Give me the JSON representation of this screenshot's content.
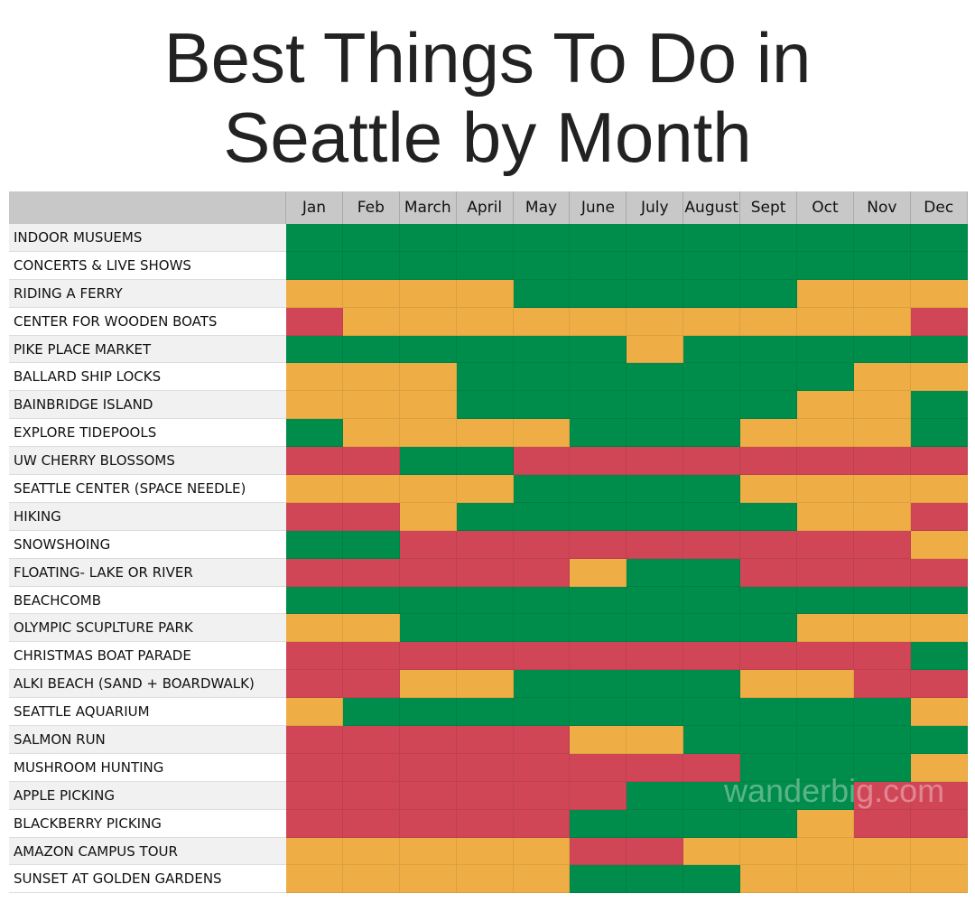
{
  "header": {
    "title_line1": "Best Things To Do in",
    "title_line2": "Seattle by Month"
  },
  "table": {
    "months": [
      "Jan",
      "Feb",
      "March",
      "April",
      "May",
      "June",
      "July",
      "August",
      "Sept",
      "Oct",
      "Nov",
      "Dec"
    ],
    "rows": [
      {
        "label": "INDOOR MUSUEMS",
        "cells": [
          "#008c4a",
          "#008c4a",
          "#008c4a",
          "#008c4a",
          "#008c4a",
          "#008c4a",
          "#008c4a",
          "#008c4a",
          "#008c4a",
          "#008c4a",
          "#008c4a",
          "#008c4a"
        ]
      },
      {
        "label": "CONCERTS & LIVE SHOWS",
        "cells": [
          "#008c4a",
          "#008c4a",
          "#008c4a",
          "#008c4a",
          "#008c4a",
          "#008c4a",
          "#008c4a",
          "#008c4a",
          "#008c4a",
          "#008c4a",
          "#008c4a",
          "#008c4a"
        ]
      },
      {
        "label": "RIDING A FERRY",
        "cells": [
          "#eeae45",
          "#eeae45",
          "#eeae45",
          "#eeae45",
          "#008c4a",
          "#008c4a",
          "#008c4a",
          "#008c4a",
          "#008c4a",
          "#eeae45",
          "#eeae45",
          "#eeae45"
        ]
      },
      {
        "label": "CENTER FOR WOODEN BOATS",
        "cells": [
          "#d04657",
          "#eeae45",
          "#eeae45",
          "#eeae45",
          "#eeae45",
          "#eeae45",
          "#eeae45",
          "#eeae45",
          "#eeae45",
          "#eeae45",
          "#eeae45",
          "#d04657"
        ]
      },
      {
        "label": "PIKE PLACE MARKET",
        "cells": [
          "#008c4a",
          "#008c4a",
          "#008c4a",
          "#008c4a",
          "#008c4a",
          "#008c4a",
          "#eeae45",
          "#008c4a",
          "#008c4a",
          "#008c4a",
          "#008c4a",
          "#008c4a"
        ]
      },
      {
        "label": "BALLARD SHIP LOCKS",
        "cells": [
          "#eeae45",
          "#eeae45",
          "#eeae45",
          "#008c4a",
          "#008c4a",
          "#008c4a",
          "#008c4a",
          "#008c4a",
          "#008c4a",
          "#008c4a",
          "#eeae45",
          "#eeae45"
        ]
      },
      {
        "label": "BAINBRIDGE ISLAND",
        "cells": [
          "#eeae45",
          "#eeae45",
          "#eeae45",
          "#008c4a",
          "#008c4a",
          "#008c4a",
          "#008c4a",
          "#008c4a",
          "#008c4a",
          "#eeae45",
          "#eeae45",
          "#008c4a"
        ]
      },
      {
        "label": "EXPLORE TIDEPOOLS",
        "cells": [
          "#008c4a",
          "#eeae45",
          "#eeae45",
          "#eeae45",
          "#eeae45",
          "#008c4a",
          "#008c4a",
          "#008c4a",
          "#eeae45",
          "#eeae45",
          "#eeae45",
          "#008c4a"
        ]
      },
      {
        "label": "UW CHERRY BLOSSOMS",
        "cells": [
          "#d04657",
          "#d04657",
          "#008c4a",
          "#008c4a",
          "#d04657",
          "#d04657",
          "#d04657",
          "#d04657",
          "#d04657",
          "#d04657",
          "#d04657",
          "#d04657"
        ]
      },
      {
        "label": "SEATTLE CENTER (SPACE NEEDLE)",
        "cells": [
          "#eeae45",
          "#eeae45",
          "#eeae45",
          "#eeae45",
          "#008c4a",
          "#008c4a",
          "#008c4a",
          "#008c4a",
          "#eeae45",
          "#eeae45",
          "#eeae45",
          "#eeae45"
        ]
      },
      {
        "label": "HIKING",
        "cells": [
          "#d04657",
          "#d04657",
          "#eeae45",
          "#008c4a",
          "#008c4a",
          "#008c4a",
          "#008c4a",
          "#008c4a",
          "#008c4a",
          "#eeae45",
          "#eeae45",
          "#d04657"
        ]
      },
      {
        "label": "SNOWSHOING",
        "cells": [
          "#008c4a",
          "#008c4a",
          "#d04657",
          "#d04657",
          "#d04657",
          "#d04657",
          "#d04657",
          "#d04657",
          "#d04657",
          "#d04657",
          "#d04657",
          "#eeae45"
        ]
      },
      {
        "label": "FLOATING- LAKE OR RIVER",
        "cells": [
          "#d04657",
          "#d04657",
          "#d04657",
          "#d04657",
          "#d04657",
          "#eeae45",
          "#008c4a",
          "#008c4a",
          "#d04657",
          "#d04657",
          "#d04657",
          "#d04657"
        ]
      },
      {
        "label": "BEACHCOMB",
        "cells": [
          "#008c4a",
          "#008c4a",
          "#008c4a",
          "#008c4a",
          "#008c4a",
          "#008c4a",
          "#008c4a",
          "#008c4a",
          "#008c4a",
          "#008c4a",
          "#008c4a",
          "#008c4a"
        ]
      },
      {
        "label": "OLYMPIC SCUPLTURE PARK",
        "cells": [
          "#eeae45",
          "#eeae45",
          "#008c4a",
          "#008c4a",
          "#008c4a",
          "#008c4a",
          "#008c4a",
          "#008c4a",
          "#008c4a",
          "#eeae45",
          "#eeae45",
          "#eeae45"
        ]
      },
      {
        "label": "CHRISTMAS BOAT PARADE",
        "cells": [
          "#d04657",
          "#d04657",
          "#d04657",
          "#d04657",
          "#d04657",
          "#d04657",
          "#d04657",
          "#d04657",
          "#d04657",
          "#d04657",
          "#d04657",
          "#008c4a"
        ]
      },
      {
        "label": "ALKI BEACH (SAND + BOARDWALK)",
        "cells": [
          "#d04657",
          "#d04657",
          "#eeae45",
          "#eeae45",
          "#008c4a",
          "#008c4a",
          "#008c4a",
          "#008c4a",
          "#eeae45",
          "#eeae45",
          "#d04657",
          "#d04657"
        ]
      },
      {
        "label": "SEATTLE AQUARIUM",
        "cells": [
          "#eeae45",
          "#008c4a",
          "#008c4a",
          "#008c4a",
          "#008c4a",
          "#008c4a",
          "#008c4a",
          "#008c4a",
          "#008c4a",
          "#008c4a",
          "#008c4a",
          "#eeae45"
        ]
      },
      {
        "label": "SALMON RUN",
        "cells": [
          "#d04657",
          "#d04657",
          "#d04657",
          "#d04657",
          "#d04657",
          "#eeae45",
          "#eeae45",
          "#008c4a",
          "#008c4a",
          "#008c4a",
          "#008c4a",
          "#008c4a"
        ]
      },
      {
        "label": "MUSHROOM HUNTING",
        "cells": [
          "#d04657",
          "#d04657",
          "#d04657",
          "#d04657",
          "#d04657",
          "#d04657",
          "#d04657",
          "#d04657",
          "#008c4a",
          "#008c4a",
          "#008c4a",
          "#eeae45"
        ]
      },
      {
        "label": "APPLE PICKING",
        "cells": [
          "#d04657",
          "#d04657",
          "#d04657",
          "#d04657",
          "#d04657",
          "#d04657",
          "#008c4a",
          "#008c4a",
          "#008c4a",
          "#008c4a",
          "#d04657",
          "#d04657"
        ]
      },
      {
        "label": "BLACKBERRY PICKING",
        "cells": [
          "#d04657",
          "#d04657",
          "#d04657",
          "#d04657",
          "#d04657",
          "#008c4a",
          "#008c4a",
          "#008c4a",
          "#008c4a",
          "#eeae45",
          "#d04657",
          "#d04657"
        ]
      },
      {
        "label": "AMAZON CAMPUS TOUR",
        "cells": [
          "#eeae45",
          "#eeae45",
          "#eeae45",
          "#eeae45",
          "#eeae45",
          "#d04657",
          "#d04657",
          "#eeae45",
          "#eeae45",
          "#eeae45",
          "#eeae45",
          "#eeae45"
        ]
      },
      {
        "label": "SUNSET AT GOLDEN GARDENS",
        "cells": [
          "#eeae45",
          "#eeae45",
          "#eeae45",
          "#eeae45",
          "#eeae45",
          "#008c4a",
          "#008c4a",
          "#008c4a",
          "#eeae45",
          "#eeae45",
          "#eeae45",
          "#eeae45"
        ]
      }
    ]
  },
  "watermark": "wanderbig.com"
}
